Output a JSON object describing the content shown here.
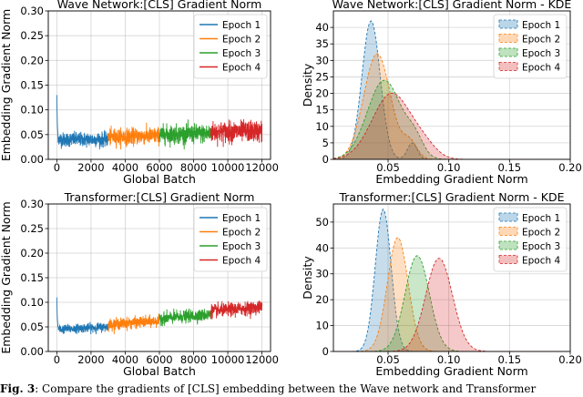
{
  "chart_data": [
    {
      "type": "line",
      "title": "Wave Network:[CLS] Gradient Norm",
      "xlabel": "Global Batch",
      "ylabel": "Embedding Gradient Norm",
      "xlim": [
        -500,
        12500
      ],
      "ylim": [
        0,
        0.3
      ],
      "xticks": [
        0,
        2000,
        4000,
        6000,
        8000,
        10000,
        12000
      ],
      "xtick_labels": [
        "0",
        "2000",
        "4000",
        "6000",
        "8000",
        "10000",
        "12000"
      ],
      "yticks": [
        0.0,
        0.05,
        0.1,
        0.15,
        0.2,
        0.25,
        0.3
      ],
      "ytick_labels": [
        "0.00",
        "0.05",
        "0.10",
        "0.15",
        "0.20",
        "0.25",
        "0.30"
      ],
      "grid": true,
      "legend_position": "top-right",
      "series": [
        {
          "name": "Epoch 1",
          "color": "#1f77b4",
          "x_range": [
            0,
            3000
          ],
          "spike": [
            0,
            0.13
          ],
          "base": 0.04,
          "trend_end": 0.04,
          "noise": 0.013
        },
        {
          "name": "Epoch 2",
          "color": "#ff7f0e",
          "x_range": [
            3000,
            6000
          ],
          "base": 0.045,
          "trend_end": 0.048,
          "noise": 0.015
        },
        {
          "name": "Epoch 3",
          "color": "#2ca02c",
          "x_range": [
            6000,
            9000
          ],
          "base": 0.05,
          "trend_end": 0.052,
          "noise": 0.017
        },
        {
          "name": "Epoch 4",
          "color": "#d62728",
          "x_range": [
            9000,
            12000
          ],
          "base": 0.055,
          "trend_end": 0.057,
          "noise": 0.019
        }
      ]
    },
    {
      "type": "area",
      "title": "Wave Network:[CLS] Gradient Norm - KDE",
      "xlabel": "Embedding Gradient Norm",
      "ylabel": "Density",
      "xlim": [
        0.005,
        0.2
      ],
      "ylim": [
        0,
        45
      ],
      "xticks": [
        0.05,
        0.1,
        0.15,
        0.2
      ],
      "xtick_labels": [
        "0.05",
        "0.10",
        "0.15",
        "0.20"
      ],
      "yticks": [
        0,
        5,
        10,
        15,
        20,
        25,
        30,
        35,
        40
      ],
      "ytick_labels": [
        "0",
        "5",
        "10",
        "15",
        "20",
        "25",
        "30",
        "35",
        "40"
      ],
      "grid": true,
      "legend_position": "top-right",
      "series": [
        {
          "name": "Epoch 1",
          "color": "#1f77b4",
          "components": [
            {
              "mu": 0.036,
              "sigma": 0.0075,
              "peak": 42
            },
            {
              "mu": 0.07,
              "sigma": 0.004,
              "peak": 5
            }
          ]
        },
        {
          "name": "Epoch 2",
          "color": "#ff7f0e",
          "components": [
            {
              "mu": 0.041,
              "sigma": 0.011,
              "peak": 32
            },
            {
              "mu": 0.068,
              "sigma": 0.006,
              "peak": 5
            }
          ]
        },
        {
          "name": "Epoch 3",
          "color": "#2ca02c",
          "components": [
            {
              "mu": 0.047,
              "sigma": 0.014,
              "peak": 24
            },
            {
              "mu": 0.072,
              "sigma": 0.007,
              "peak": 5
            }
          ]
        },
        {
          "name": "Epoch 4",
          "color": "#d62728",
          "components": [
            {
              "mu": 0.053,
              "sigma": 0.016,
              "peak": 20
            },
            {
              "mu": 0.08,
              "sigma": 0.01,
              "peak": 3
            }
          ]
        }
      ]
    },
    {
      "type": "line",
      "title": "Transformer:[CLS] Gradient Norm",
      "xlabel": "Global Batch",
      "ylabel": "Embedding Gradient Norm",
      "xlim": [
        -500,
        12500
      ],
      "ylim": [
        0,
        0.3
      ],
      "xticks": [
        0,
        2000,
        4000,
        6000,
        8000,
        10000,
        12000
      ],
      "xtick_labels": [
        "0",
        "2000",
        "4000",
        "6000",
        "8000",
        "10000",
        "12000"
      ],
      "yticks": [
        0.0,
        0.05,
        0.1,
        0.15,
        0.2,
        0.25,
        0.3
      ],
      "ytick_labels": [
        "0.00",
        "0.05",
        "0.10",
        "0.15",
        "0.20",
        "0.25",
        "0.30"
      ],
      "grid": true,
      "legend_position": "top-right",
      "series": [
        {
          "name": "Epoch 1",
          "color": "#1f77b4",
          "x_range": [
            0,
            3000
          ],
          "spike": [
            0,
            0.11
          ],
          "base": 0.045,
          "trend_end": 0.05,
          "noise": 0.008
        },
        {
          "name": "Epoch 2",
          "color": "#ff7f0e",
          "x_range": [
            3000,
            6000
          ],
          "base": 0.055,
          "trend_end": 0.062,
          "noise": 0.01
        },
        {
          "name": "Epoch 3",
          "color": "#2ca02c",
          "x_range": [
            6000,
            9000
          ],
          "base": 0.067,
          "trend_end": 0.075,
          "noise": 0.011
        },
        {
          "name": "Epoch 4",
          "color": "#d62728",
          "x_range": [
            9000,
            12000
          ],
          "base": 0.082,
          "trend_end": 0.09,
          "noise": 0.012
        }
      ]
    },
    {
      "type": "area",
      "title": "Transformer:[CLS] Gradient Norm - KDE",
      "xlabel": "Embedding Gradient Norm",
      "ylabel": "Density",
      "xlim": [
        0.005,
        0.2
      ],
      "ylim": [
        0,
        57
      ],
      "xticks": [
        0.05,
        0.1,
        0.15,
        0.2
      ],
      "xtick_labels": [
        "0.05",
        "0.10",
        "0.15",
        "0.20"
      ],
      "yticks": [
        0,
        10,
        20,
        30,
        40,
        50
      ],
      "ytick_labels": [
        "0",
        "10",
        "20",
        "30",
        "40",
        "50"
      ],
      "grid": true,
      "legend_position": "top-right",
      "series": [
        {
          "name": "Epoch 1",
          "color": "#1f77b4",
          "components": [
            {
              "mu": 0.046,
              "sigma": 0.0065,
              "peak": 55
            }
          ]
        },
        {
          "name": "Epoch 2",
          "color": "#ff7f0e",
          "components": [
            {
              "mu": 0.058,
              "sigma": 0.0085,
              "peak": 44
            }
          ]
        },
        {
          "name": "Epoch 3",
          "color": "#2ca02c",
          "components": [
            {
              "mu": 0.074,
              "sigma": 0.01,
              "peak": 37
            }
          ]
        },
        {
          "name": "Epoch 4",
          "color": "#d62728",
          "components": [
            {
              "mu": 0.092,
              "sigma": 0.011,
              "peak": 36
            }
          ]
        }
      ]
    }
  ],
  "caption": {
    "label": "Fig. 3",
    "text": "Compare the gradients of [CLS] embedding between the Wave network and Transformer"
  }
}
